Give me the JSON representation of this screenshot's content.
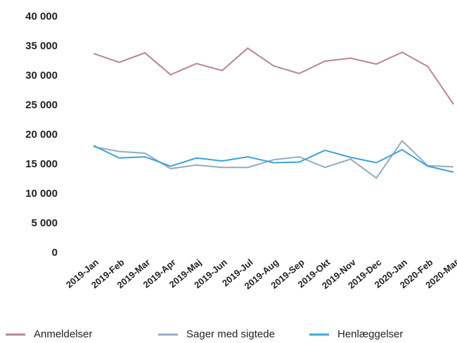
{
  "chart_data": {
    "type": "line",
    "categories": [
      "2019-Jan",
      "2019-Feb",
      "2019-Mar",
      "2019-Apr",
      "2019-Maj",
      "2019-Jun",
      "2019-Jul",
      "2019-Aug",
      "2019-Sep",
      "2019-Okt",
      "2019-Nov",
      "2019-Dec",
      "2020-Jan",
      "2020-Feb",
      "2020-Mar"
    ],
    "series": [
      {
        "name": "Anmeldelser",
        "color": "#b8868e",
        "values": [
          33800,
          32300,
          33900,
          30200,
          32100,
          30900,
          34700,
          31700,
          30400,
          32500,
          33000,
          32000,
          34000,
          31600,
          25200
        ]
      },
      {
        "name": "Sager med sigtede",
        "color": "#93abc0",
        "values": [
          18000,
          17200,
          16900,
          14300,
          14900,
          14500,
          14500,
          15800,
          16300,
          14500,
          15900,
          12700,
          19000,
          14800,
          14600
        ]
      },
      {
        "name": "Henlæggelser",
        "color": "#3ba3dc",
        "values": [
          18200,
          16100,
          16300,
          14700,
          16100,
          15600,
          16300,
          15300,
          15400,
          17400,
          16200,
          15300,
          17500,
          14700,
          13700
        ]
      }
    ],
    "ylim": [
      0,
      40000
    ],
    "yticks": [
      0,
      {
        "value": 5000,
        "label": "5 000"
      },
      {
        "value": 10000,
        "label": "10 000"
      },
      {
        "value": 15000,
        "label": "15 000"
      },
      {
        "value": 20000,
        "label": "20 000"
      },
      {
        "value": 25000,
        "label": "25 000"
      },
      {
        "value": 30000,
        "label": "30 000"
      },
      {
        "value": 35000,
        "label": "35 000"
      },
      {
        "value": 40000,
        "label": "40 000"
      }
    ],
    "grid": false,
    "legend": "bottom"
  }
}
